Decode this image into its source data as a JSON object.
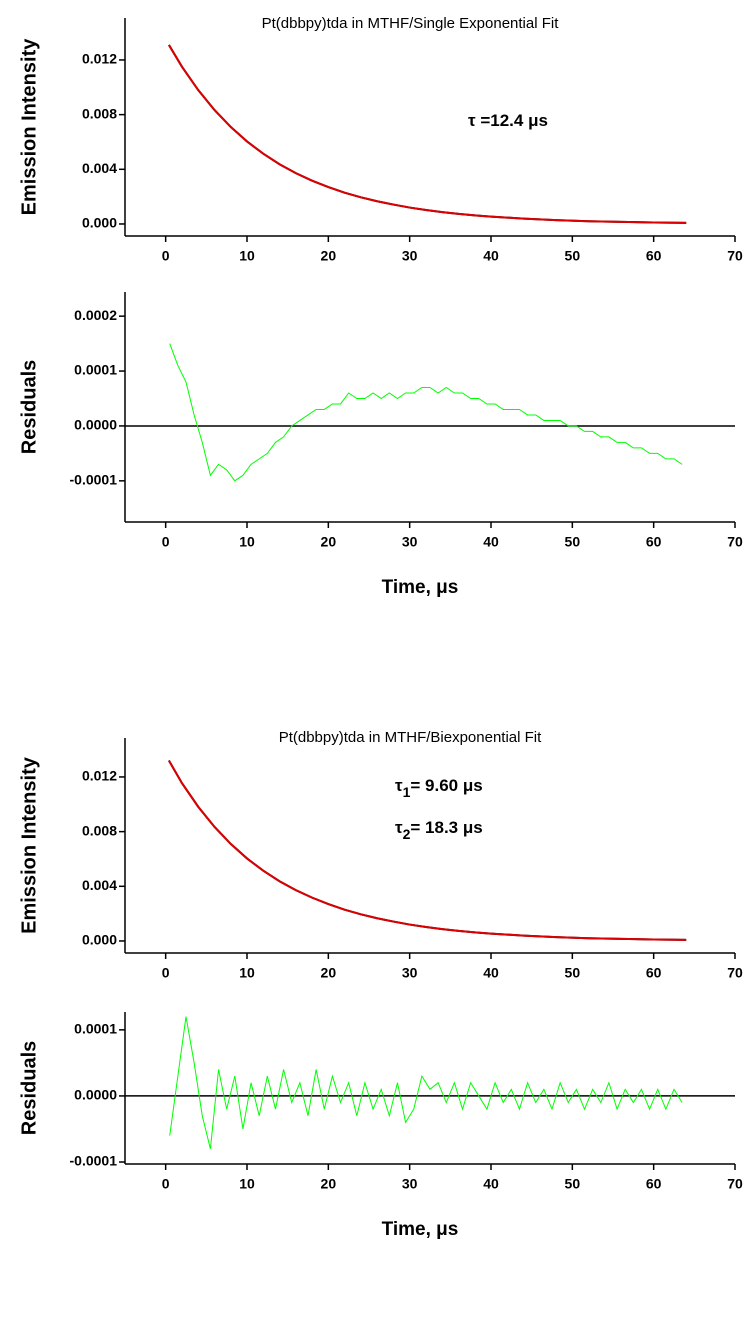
{
  "chart_data": [
    {
      "type": "line",
      "title": "Pt(dbbpy)tda in MTHF/Single Exponential Fit",
      "y_label": "Emission Intensity",
      "annotations": [
        {
          "symbol": "τ",
          "text": " =12.4 μs"
        }
      ],
      "x": [
        0.4,
        2,
        4,
        6,
        8,
        10,
        12,
        14,
        16,
        18,
        20,
        22,
        24,
        26,
        28,
        30,
        32,
        34,
        36,
        38,
        40,
        44,
        48,
        52,
        56,
        60,
        64
      ],
      "series": [
        {
          "name": "data",
          "color": "#000000",
          "values": [
            0.0131,
            0.01151,
            0.0098,
            0.00834,
            0.0071,
            0.00604,
            0.00514,
            0.00437,
            0.00372,
            0.00317,
            0.0027,
            0.00229,
            0.00195,
            0.00166,
            0.00142,
            0.0012,
            0.00102,
            0.00087,
            0.00074,
            0.00063,
            0.00054,
            0.00039,
            0.00028,
            0.0002,
            0.00015,
            0.00011,
            8e-05
          ]
        },
        {
          "name": "fit",
          "color": "#dd0000",
          "values": [
            0.0131,
            0.01151,
            0.0098,
            0.00834,
            0.0071,
            0.00604,
            0.00514,
            0.00437,
            0.00372,
            0.00317,
            0.0027,
            0.00229,
            0.00195,
            0.00166,
            0.00142,
            0.0012,
            0.00102,
            0.00087,
            0.00074,
            0.00063,
            0.00054,
            0.00039,
            0.00028,
            0.0002,
            0.00015,
            0.00011,
            8e-05
          ]
        }
      ],
      "xlim": [
        -5,
        70
      ],
      "xticks": [
        0,
        10,
        20,
        30,
        40,
        50,
        60,
        70
      ],
      "ylim": [
        -0.00088,
        0.01507
      ],
      "yticks": [
        {
          "value": 0,
          "label": "0.000"
        },
        0.004,
        0.008,
        0.012
      ],
      "zero_line": false
    },
    {
      "type": "line",
      "y_label": "Residuals",
      "x_label": "Time, μs",
      "x": [
        0.5,
        1.5,
        2.5,
        3.5,
        4.5,
        5.5,
        6.5,
        7.5,
        8.5,
        9.5,
        10.5,
        11.5,
        12.5,
        13.5,
        14.5,
        15.5,
        16.5,
        17.5,
        18.5,
        19.5,
        20.5,
        21.5,
        22.5,
        23.5,
        24.5,
        25.5,
        26.5,
        27.5,
        28.5,
        29.5,
        30.5,
        31.5,
        32.5,
        33.5,
        34.5,
        35.5,
        36.5,
        37.5,
        38.5,
        39.5,
        40.5,
        41.5,
        42.5,
        43.5,
        44.5,
        45.5,
        46.5,
        47.5,
        48.5,
        49.5,
        50.5,
        51.5,
        52.5,
        53.5,
        54.5,
        55.5,
        56.5,
        57.5,
        58.5,
        59.5,
        60.5,
        61.5,
        62.5,
        63.5
      ],
      "series": [
        {
          "name": "residuals",
          "color": "#00ff00",
          "values": [
            0.00015,
            0.00011,
            8e-05,
            2e-05,
            -3e-05,
            -9e-05,
            -7e-05,
            -8e-05,
            -0.0001,
            -9e-05,
            -7e-05,
            -6e-05,
            -5e-05,
            -3e-05,
            -2e-05,
            0,
            1e-05,
            2e-05,
            3e-05,
            3e-05,
            4e-05,
            4e-05,
            6e-05,
            5e-05,
            5e-05,
            6e-05,
            5e-05,
            6e-05,
            5e-05,
            6e-05,
            6e-05,
            7e-05,
            7e-05,
            6e-05,
            7e-05,
            6e-05,
            6e-05,
            5e-05,
            5e-05,
            4e-05,
            4e-05,
            3e-05,
            3e-05,
            3e-05,
            2e-05,
            2e-05,
            1e-05,
            1e-05,
            1e-05,
            0,
            0,
            -1e-05,
            -1e-05,
            -2e-05,
            -2e-05,
            -3e-05,
            -3e-05,
            -4e-05,
            -4e-05,
            -5e-05,
            -5e-05,
            -6e-05,
            -6e-05,
            -7e-05
          ]
        }
      ],
      "xlim": [
        -5,
        70
      ],
      "xticks": [
        0,
        10,
        20,
        30,
        40,
        50,
        60,
        70
      ],
      "ylim": [
        -0.000175,
        0.000244
      ],
      "yticks": [
        -0.0001,
        {
          "value": 0,
          "label": "0.0000"
        },
        0.0001,
        0.0002
      ],
      "zero_line": true
    },
    {
      "type": "line",
      "title": "Pt(dbbpy)tda in MTHF/Biexponential Fit",
      "y_label": "Emission Intensity",
      "annotations": [
        {
          "symbol": "τ",
          "subscript": "1",
          "text": "= 9.60 μs"
        },
        {
          "symbol": "τ",
          "subscript": "2",
          "text": "= 18.3 μs"
        }
      ],
      "x": [
        0.4,
        2,
        4,
        6,
        8,
        10,
        12,
        14,
        16,
        18,
        20,
        22,
        24,
        26,
        28,
        30,
        32,
        34,
        36,
        38,
        40,
        44,
        48,
        52,
        56,
        60,
        64
      ],
      "series": [
        {
          "name": "data",
          "color": "#000000",
          "values": [
            0.0132,
            0.01155,
            0.00982,
            0.00835,
            0.0071,
            0.00604,
            0.00514,
            0.00437,
            0.00372,
            0.00317,
            0.0027,
            0.00229,
            0.00195,
            0.00166,
            0.00142,
            0.0012,
            0.00102,
            0.00087,
            0.00074,
            0.00063,
            0.00054,
            0.00039,
            0.00028,
            0.0002,
            0.00015,
            0.00011,
            8e-05
          ]
        },
        {
          "name": "fit",
          "color": "#dd0000",
          "values": [
            0.0132,
            0.01155,
            0.00982,
            0.00835,
            0.0071,
            0.00604,
            0.00514,
            0.00437,
            0.00372,
            0.00317,
            0.0027,
            0.00229,
            0.00195,
            0.00166,
            0.00142,
            0.0012,
            0.00102,
            0.00087,
            0.00074,
            0.00063,
            0.00054,
            0.00039,
            0.00028,
            0.0002,
            0.00015,
            0.00011,
            8e-05
          ]
        }
      ],
      "xlim": [
        -5,
        70
      ],
      "xticks": [
        0,
        10,
        20,
        30,
        40,
        50,
        60,
        70
      ],
      "ylim": [
        -0.00088,
        0.01485
      ],
      "yticks": [
        {
          "value": 0,
          "label": "0.000"
        },
        0.004,
        0.008,
        0.012
      ],
      "zero_line": false
    },
    {
      "type": "line",
      "y_label": "Residuals",
      "x_label": "Time, μs",
      "x": [
        0.5,
        1.5,
        2.5,
        3.5,
        4.5,
        5.5,
        6.5,
        7.5,
        8.5,
        9.5,
        10.5,
        11.5,
        12.5,
        13.5,
        14.5,
        15.5,
        16.5,
        17.5,
        18.5,
        19.5,
        20.5,
        21.5,
        22.5,
        23.5,
        24.5,
        25.5,
        26.5,
        27.5,
        28.5,
        29.5,
        30.5,
        31.5,
        32.5,
        33.5,
        34.5,
        35.5,
        36.5,
        37.5,
        38.5,
        39.5,
        40.5,
        41.5,
        42.5,
        43.5,
        44.5,
        45.5,
        46.5,
        47.5,
        48.5,
        49.5,
        50.5,
        51.5,
        52.5,
        53.5,
        54.5,
        55.5,
        56.5,
        57.5,
        58.5,
        59.5,
        60.5,
        61.5,
        62.5,
        63.5
      ],
      "series": [
        {
          "name": "residuals",
          "color": "#00ff00",
          "values": [
            -6e-05,
            3e-05,
            0.00012,
            5e-05,
            -3e-05,
            -8e-05,
            4e-05,
            -2e-05,
            3e-05,
            -5e-05,
            2e-05,
            -3e-05,
            3e-05,
            -2e-05,
            4e-05,
            -1e-05,
            2e-05,
            -3e-05,
            4e-05,
            -2e-05,
            3e-05,
            -1e-05,
            2e-05,
            -3e-05,
            2e-05,
            -2e-05,
            1e-05,
            -3e-05,
            2e-05,
            -4e-05,
            -2e-05,
            3e-05,
            1e-05,
            2e-05,
            -1e-05,
            2e-05,
            -2e-05,
            2e-05,
            0,
            -2e-05,
            2e-05,
            -1e-05,
            1e-05,
            -2e-05,
            2e-05,
            -1e-05,
            1e-05,
            -2e-05,
            2e-05,
            -1e-05,
            1e-05,
            -2e-05,
            1e-05,
            -1e-05,
            2e-05,
            -2e-05,
            1e-05,
            -1e-05,
            1e-05,
            -2e-05,
            1e-05,
            -2e-05,
            1e-05,
            -1e-05
          ]
        }
      ],
      "xlim": [
        -5,
        70
      ],
      "xticks": [
        0,
        10,
        20,
        30,
        40,
        50,
        60,
        70
      ],
      "ylim": [
        -0.000103,
        0.000127
      ],
      "yticks": [
        -0.0001,
        {
          "value": 0,
          "label": "0.0000"
        },
        0.0001
      ],
      "zero_line": true
    }
  ]
}
